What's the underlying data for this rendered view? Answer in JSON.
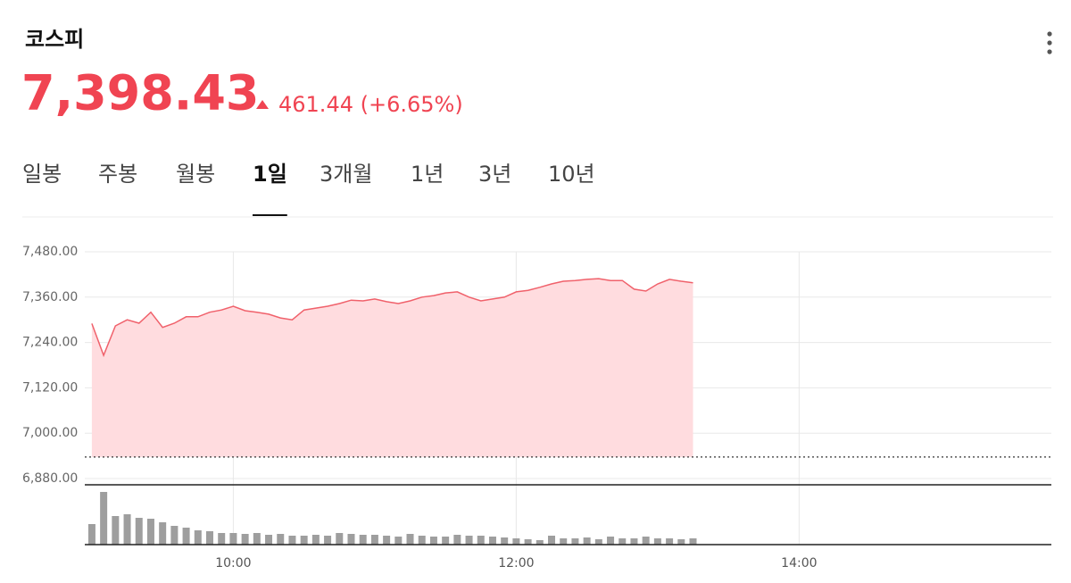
{
  "header": {
    "title": "코스피",
    "price": "7,398.43",
    "change": "461.44 (+6.65%)"
  },
  "tabs": [
    "일봉",
    "주봉",
    "월봉",
    "1일",
    "3개월",
    "1년",
    "3년",
    "10년"
  ],
  "active_tab": "1일",
  "chart_data": [
    {
      "type": "line",
      "color": "#f0616b",
      "fill": "#ffdcdf",
      "x": [
        540,
        545,
        550,
        555,
        560,
        565,
        570,
        575,
        580,
        585,
        590,
        595,
        600,
        605,
        610,
        615,
        620,
        625,
        630,
        635,
        640,
        645,
        650,
        655,
        660,
        665,
        670,
        675,
        680,
        685,
        690,
        695,
        700,
        705,
        710,
        715,
        720,
        725,
        730,
        735,
        740,
        745,
        750,
        755,
        760,
        765,
        770,
        775,
        780,
        785,
        790,
        795
      ],
      "values": [
        7290,
        7206,
        7284,
        7300,
        7291,
        7320,
        7280,
        7291,
        7308,
        7308,
        7320,
        7326,
        7336,
        7324,
        7320,
        7315,
        7305,
        7300,
        7326,
        7331,
        7336,
        7343,
        7352,
        7350,
        7355,
        7348,
        7343,
        7350,
        7360,
        7364,
        7371,
        7374,
        7360,
        7350,
        7355,
        7360,
        7374,
        7378,
        7386,
        7395,
        7402,
        7404,
        7407,
        7409,
        7404,
        7404,
        7381,
        7376,
        7395,
        7407,
        7402,
        7398
      ],
      "reference": 6936.99,
      "xlim": [
        537,
        947
      ],
      "ylim": [
        6880,
        7480
      ],
      "yticks": [
        {
          "value": 7480,
          "label": "7,480.00"
        },
        {
          "value": 7360,
          "label": "7,360.00"
        },
        {
          "value": 7240,
          "label": "7,240.00"
        },
        {
          "value": 7120,
          "label": "7,120.00"
        },
        {
          "value": 7000,
          "label": "7,000.00"
        },
        {
          "value": 6880,
          "label": "6,880.00"
        }
      ],
      "grid": true
    },
    {
      "type": "bar",
      "color": "#9e9e9e",
      "x": [
        540,
        545,
        550,
        555,
        560,
        565,
        570,
        575,
        580,
        585,
        590,
        595,
        600,
        605,
        610,
        615,
        620,
        625,
        630,
        635,
        640,
        645,
        650,
        655,
        660,
        665,
        670,
        675,
        680,
        685,
        690,
        695,
        700,
        705,
        710,
        715,
        720,
        725,
        730,
        735,
        740,
        745,
        750,
        755,
        760,
        765,
        770,
        775,
        780,
        785,
        790,
        795
      ],
      "values": [
        23,
        59,
        32,
        34,
        30,
        29,
        25,
        21,
        19,
        16,
        15,
        13,
        13,
        12,
        13,
        11,
        12,
        10,
        10,
        11,
        10,
        13,
        12,
        11,
        11,
        10,
        9,
        12,
        10,
        9,
        9,
        11,
        10,
        10,
        9,
        8,
        7,
        6,
        5,
        10,
        7,
        7,
        8,
        6,
        9,
        7,
        7,
        9,
        7,
        7,
        6,
        7
      ],
      "xlim": [
        537,
        947
      ],
      "ylim": [
        0,
        67
      ],
      "xticks": [
        {
          "value": 600,
          "label": "10:00"
        },
        {
          "value": 720,
          "label": "12:00"
        },
        {
          "value": 840,
          "label": "14:00"
        }
      ]
    }
  ]
}
